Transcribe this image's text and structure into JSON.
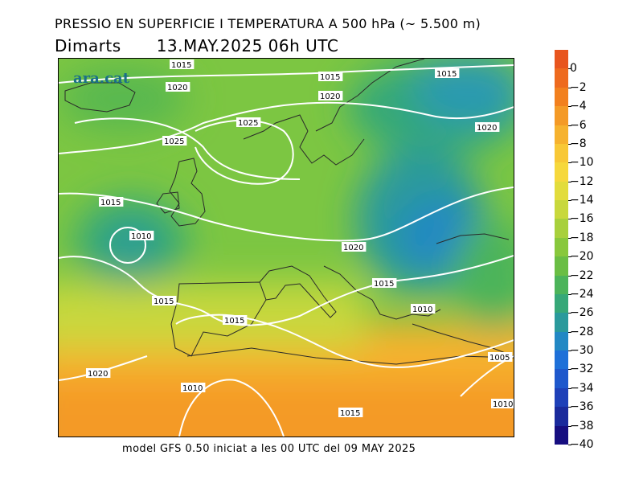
{
  "header": {
    "title": "PRESSIO EN SUPERFICIE I TEMPERATURA A 500 hPa (~ 5.500 m)",
    "day": "Dimarts",
    "datetime": "13.MAY.2025 06h UTC"
  },
  "logo": {
    "text": "ara.cat"
  },
  "footer": {
    "text": "model GFS 0.50 iniciat a les 00 UTC del 09 MAY 2025"
  },
  "colorbar": {
    "labels": [
      "0",
      "−2",
      "−4",
      "−6",
      "−8",
      "−10",
      "−12",
      "−14",
      "−16",
      "−18",
      "−20",
      "−22",
      "−24",
      "−26",
      "−28",
      "−30",
      "−32",
      "−34",
      "−36",
      "−38",
      "−40"
    ],
    "colors": [
      "#e8551e",
      "#ee6a1e",
      "#f2801e",
      "#f49a26",
      "#f6b22e",
      "#f8c836",
      "#f6d83c",
      "#e2dc3c",
      "#c8d83c",
      "#a8d03c",
      "#88c83c",
      "#6abe44",
      "#4cb45a",
      "#36a878",
      "#2a9a9c",
      "#2288c4",
      "#1e70d8",
      "#1e58cc",
      "#1e40b8",
      "#1a2a9c",
      "#160e80"
    ]
  },
  "isobars": [
    "1015",
    "1015",
    "1020",
    "1020",
    "1015",
    "1020",
    "1025",
    "1025",
    "1015",
    "1010",
    "1015",
    "1015",
    "1020",
    "1015",
    "1010",
    "1020",
    "1010",
    "1005",
    "1015",
    "1010"
  ]
}
